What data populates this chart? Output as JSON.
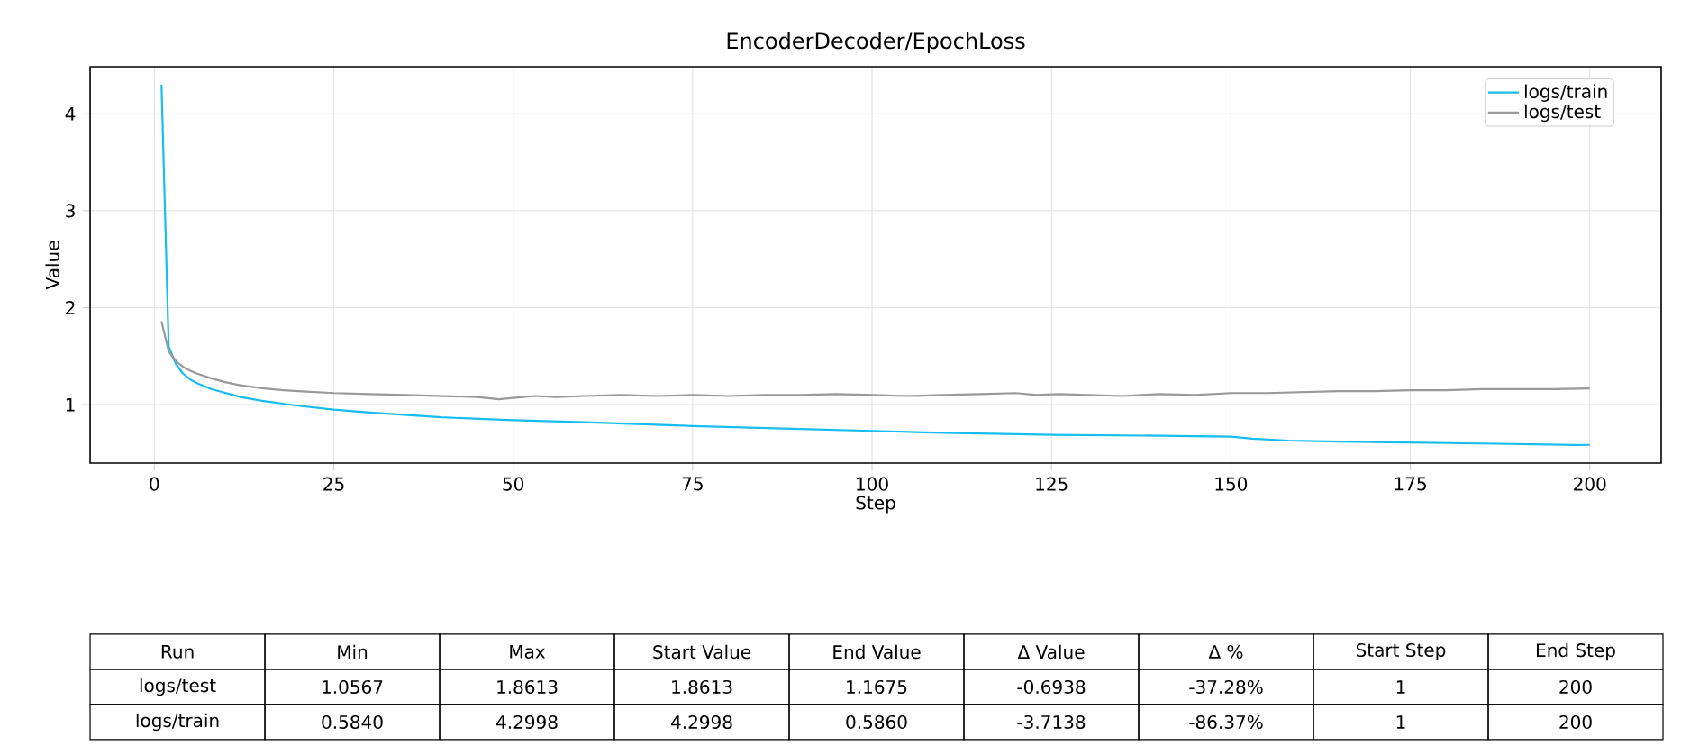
{
  "chart_data": {
    "type": "line",
    "title": "EncoderDecoder/EpochLoss",
    "xlabel": "Step",
    "ylabel": "Value",
    "series": [
      {
        "name": "logs/train",
        "color": "#17bdf0",
        "x": [
          1,
          2,
          3,
          4,
          5,
          6,
          8,
          10,
          12,
          15,
          20,
          25,
          30,
          40,
          50,
          60,
          75,
          90,
          100,
          110,
          125,
          140,
          150,
          153,
          158,
          165,
          175,
          185,
          198,
          200
        ],
        "values": [
          4.2998,
          1.6,
          1.42,
          1.32,
          1.26,
          1.22,
          1.16,
          1.12,
          1.08,
          1.04,
          0.99,
          0.95,
          0.92,
          0.87,
          0.84,
          0.82,
          0.78,
          0.75,
          0.73,
          0.71,
          0.69,
          0.68,
          0.67,
          0.65,
          0.63,
          0.62,
          0.61,
          0.6,
          0.584,
          0.586
        ]
      },
      {
        "name": "logs/test",
        "color": "#999999",
        "x": [
          1,
          2,
          3,
          4,
          5,
          6,
          8,
          10,
          12,
          15,
          18,
          20,
          25,
          30,
          35,
          40,
          45,
          48,
          50,
          53,
          56,
          60,
          65,
          70,
          75,
          80,
          85,
          90,
          95,
          100,
          105,
          110,
          115,
          120,
          123,
          126,
          130,
          135,
          140,
          145,
          150,
          155,
          160,
          165,
          170,
          175,
          180,
          185,
          190,
          195,
          200
        ],
        "values": [
          1.8613,
          1.55,
          1.45,
          1.39,
          1.35,
          1.32,
          1.27,
          1.23,
          1.2,
          1.17,
          1.15,
          1.14,
          1.12,
          1.11,
          1.1,
          1.09,
          1.08,
          1.0567,
          1.07,
          1.09,
          1.08,
          1.09,
          1.1,
          1.09,
          1.1,
          1.09,
          1.1,
          1.1,
          1.11,
          1.1,
          1.09,
          1.1,
          1.11,
          1.12,
          1.1,
          1.11,
          1.1,
          1.09,
          1.11,
          1.1,
          1.12,
          1.12,
          1.13,
          1.14,
          1.14,
          1.15,
          1.15,
          1.16,
          1.16,
          1.16,
          1.1675
        ]
      }
    ],
    "xlim": [
      -8.95,
      209.95
    ],
    "ylim": [
      0.398,
      4.486
    ],
    "xticks": [
      0,
      25,
      50,
      75,
      100,
      125,
      150,
      175,
      200
    ],
    "yticks": [
      1,
      2,
      3,
      4
    ],
    "grid": true,
    "legend": "top right",
    "annotations": [
      "Run",
      "Min",
      "Max",
      "Start Value",
      "End Value",
      "Δ Value",
      "Δ %",
      "Start Step",
      "End Step",
      "logs/test",
      "1.0567",
      "1.8613",
      "1.8613",
      "1.1675",
      "-0.6938",
      "-37.28%",
      "1",
      "200",
      "logs/train",
      "0.5840",
      "4.2998",
      "4.2998",
      "0.5860",
      "-3.7138",
      "-86.37%",
      "1",
      "200"
    ]
  }
}
